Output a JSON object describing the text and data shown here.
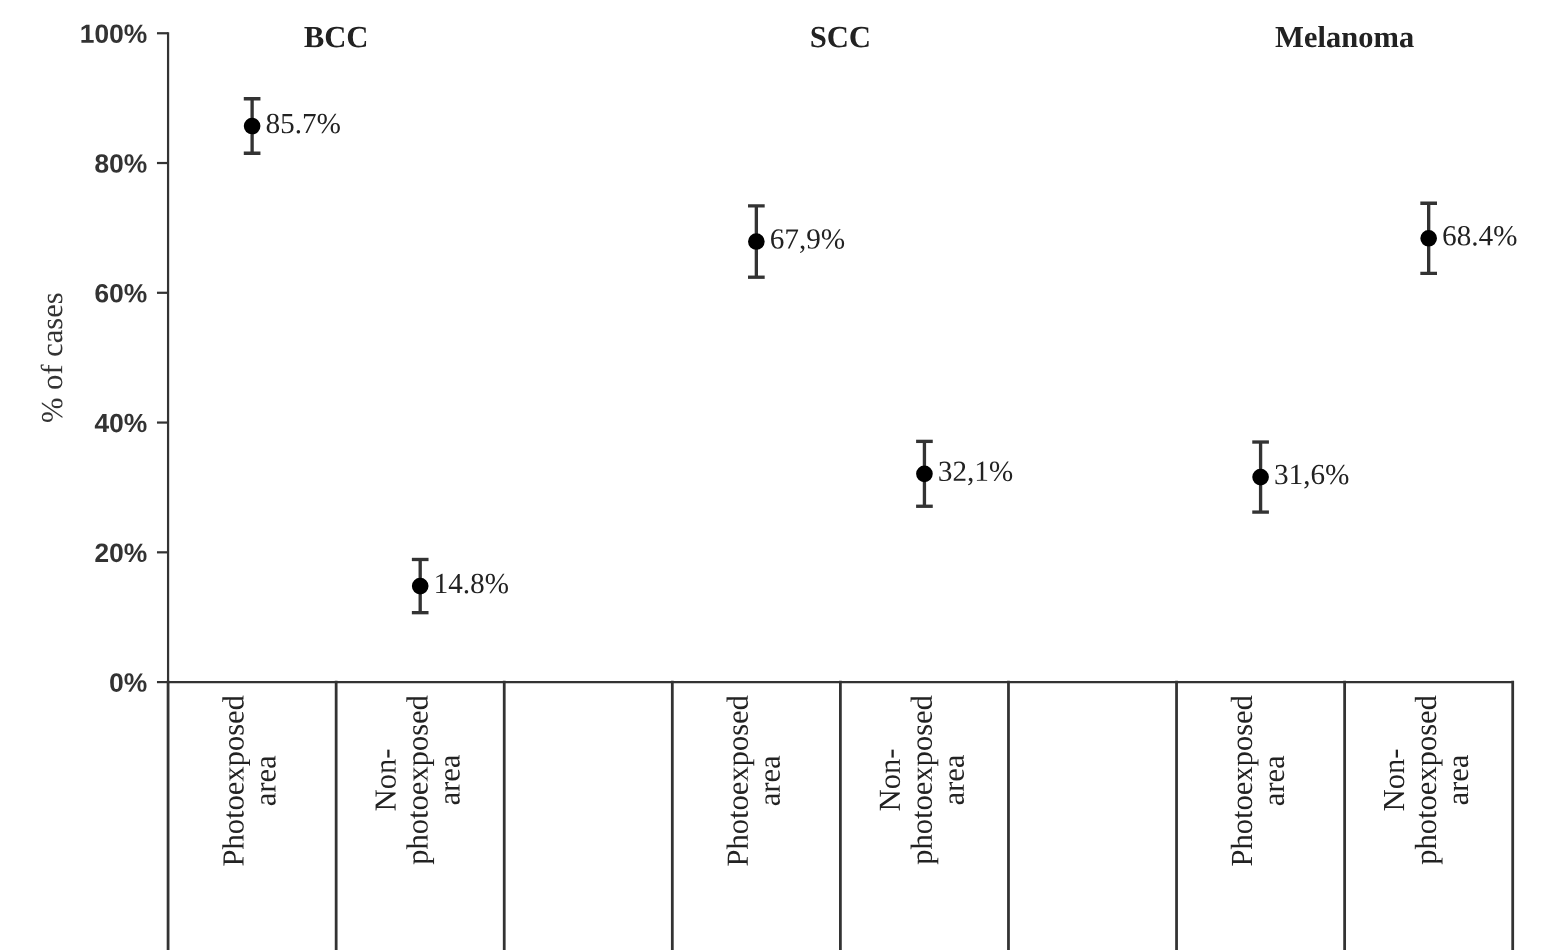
{
  "chart_data": {
    "type": "scatter",
    "ylabel": "% of cases",
    "categories": [
      "Photoexposed\narea",
      "Non-\nphotoexposed\narea",
      null,
      "Photoexposed\narea",
      "Non-\nphotoexposed\narea",
      null,
      "Photoexposed\narea",
      "Non-\nphotoexposed\narea"
    ],
    "values": [
      85.7,
      14.8,
      null,
      67.9,
      32.1,
      null,
      31.6,
      68.4
    ],
    "errors": [
      4.2,
      4.1,
      null,
      5.5,
      5,
      null,
      5.4,
      5.4
    ],
    "value_labels": [
      "85.7%",
      "14.8%",
      null,
      "67,9%",
      "32,1%",
      null,
      "31,6%",
      "68.4%"
    ],
    "color": "#000000",
    "marker": "circle",
    "ylim": [
      0,
      100
    ],
    "yticks": [
      {
        "value": 0,
        "label": "0%"
      },
      {
        "value": 20,
        "label": "20%"
      },
      {
        "value": 40,
        "label": "40%"
      },
      {
        "value": 60,
        "label": "60%"
      },
      {
        "value": 80,
        "label": "80%"
      },
      {
        "value": 100,
        "label": "100%"
      }
    ],
    "annotations": [
      "BCC",
      "SCC",
      "Melanoma"
    ],
    "grid": false,
    "legend": false
  }
}
